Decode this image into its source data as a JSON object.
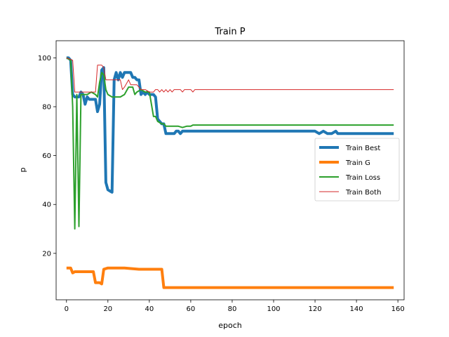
{
  "chart_data": {
    "type": "line",
    "title": "Train P",
    "xlabel": "epoch",
    "ylabel": "p",
    "xlim": [
      -5,
      163
    ],
    "ylim": [
      1,
      107
    ],
    "xticks": [
      0,
      20,
      40,
      60,
      80,
      100,
      120,
      140,
      160
    ],
    "yticks": [
      20,
      40,
      60,
      80,
      100
    ],
    "legend_position": "center-right",
    "grid": false,
    "series": [
      {
        "name": "Train Best",
        "color": "#1f77b4",
        "width": 4,
        "points": [
          [
            0,
            100
          ],
          [
            1,
            100
          ],
          [
            2,
            99
          ],
          [
            3,
            85
          ],
          [
            4,
            84
          ],
          [
            5,
            84
          ],
          [
            6,
            84
          ],
          [
            7,
            86
          ],
          [
            8,
            85
          ],
          [
            9,
            81
          ],
          [
            10,
            84
          ],
          [
            11,
            83
          ],
          [
            12,
            83
          ],
          [
            13,
            83
          ],
          [
            14,
            83
          ],
          [
            15,
            78
          ],
          [
            16,
            81
          ],
          [
            17,
            95
          ],
          [
            18,
            96
          ],
          [
            19,
            49
          ],
          [
            20,
            46
          ],
          [
            21,
            45.5
          ],
          [
            22,
            45
          ],
          [
            23,
            91
          ],
          [
            24,
            94
          ],
          [
            25,
            91
          ],
          [
            26,
            94
          ],
          [
            27,
            92
          ],
          [
            28,
            94
          ],
          [
            29,
            94
          ],
          [
            30,
            94
          ],
          [
            31,
            94
          ],
          [
            32,
            92
          ],
          [
            33,
            92
          ],
          [
            34,
            91
          ],
          [
            35,
            91
          ],
          [
            36,
            85
          ],
          [
            37,
            86
          ],
          [
            38,
            85
          ],
          [
            39,
            86
          ],
          [
            40,
            85
          ],
          [
            41,
            85
          ],
          [
            42,
            85
          ],
          [
            43,
            84
          ],
          [
            44,
            75
          ],
          [
            45,
            74
          ],
          [
            46,
            73
          ],
          [
            47,
            73
          ],
          [
            48,
            69
          ],
          [
            49,
            69
          ],
          [
            50,
            69
          ],
          [
            51,
            69
          ],
          [
            52,
            69
          ],
          [
            53,
            70
          ],
          [
            54,
            70
          ],
          [
            55,
            69
          ],
          [
            56,
            70
          ],
          [
            57,
            70
          ],
          [
            60,
            70
          ],
          [
            120,
            70
          ],
          [
            122,
            69
          ],
          [
            124,
            70
          ],
          [
            126,
            69
          ],
          [
            128,
            69
          ],
          [
            130,
            70
          ],
          [
            131,
            69
          ],
          [
            135,
            69
          ],
          [
            158,
            69
          ]
        ]
      },
      {
        "name": "Train G",
        "color": "#ff7f0e",
        "width": 4,
        "points": [
          [
            0,
            14
          ],
          [
            2,
            14
          ],
          [
            3,
            12
          ],
          [
            4,
            12.5
          ],
          [
            5,
            12.5
          ],
          [
            12,
            12.5
          ],
          [
            13,
            12.5
          ],
          [
            14,
            8
          ],
          [
            16,
            8
          ],
          [
            17,
            7.5
          ],
          [
            18,
            13.5
          ],
          [
            20,
            14
          ],
          [
            26,
            14
          ],
          [
            28,
            14
          ],
          [
            35,
            13.5
          ],
          [
            40,
            13.5
          ],
          [
            45,
            13.5
          ],
          [
            46,
            13.5
          ],
          [
            47,
            6
          ],
          [
            100,
            6
          ],
          [
            158,
            6
          ]
        ]
      },
      {
        "name": "Train Loss",
        "color": "#2ca02c",
        "width": 2,
        "points": [
          [
            0,
            100
          ],
          [
            2,
            99
          ],
          [
            3,
            80
          ],
          [
            4,
            30
          ],
          [
            5,
            85
          ],
          [
            6,
            31
          ],
          [
            7,
            85
          ],
          [
            10,
            85
          ],
          [
            12,
            86
          ],
          [
            14,
            85
          ],
          [
            15,
            84
          ],
          [
            16,
            90
          ],
          [
            17,
            94
          ],
          [
            18,
            93
          ],
          [
            19,
            87
          ],
          [
            20,
            85
          ],
          [
            22,
            84
          ],
          [
            24,
            84
          ],
          [
            26,
            84
          ],
          [
            28,
            85
          ],
          [
            30,
            88
          ],
          [
            32,
            88
          ],
          [
            33,
            85
          ],
          [
            34,
            86
          ],
          [
            36,
            87
          ],
          [
            38,
            86
          ],
          [
            40,
            86
          ],
          [
            42,
            76
          ],
          [
            43,
            76
          ],
          [
            44,
            74
          ],
          [
            46,
            73
          ],
          [
            47,
            73
          ],
          [
            48,
            72
          ],
          [
            50,
            72
          ],
          [
            52,
            72
          ],
          [
            54,
            72
          ],
          [
            56,
            71.5
          ],
          [
            58,
            72
          ],
          [
            60,
            72
          ],
          [
            61,
            72.5
          ],
          [
            80,
            72.5
          ],
          [
            158,
            72.5
          ]
        ]
      },
      {
        "name": "Train Both",
        "color": "#d62728",
        "width": 1,
        "points": [
          [
            0,
            100
          ],
          [
            3,
            99
          ],
          [
            4,
            86
          ],
          [
            6,
            86
          ],
          [
            10,
            86
          ],
          [
            12,
            86
          ],
          [
            14,
            86
          ],
          [
            15,
            97
          ],
          [
            16,
            97
          ],
          [
            17,
            97
          ],
          [
            18,
            96
          ],
          [
            19,
            91
          ],
          [
            20,
            91
          ],
          [
            24,
            91
          ],
          [
            26,
            91
          ],
          [
            27,
            87
          ],
          [
            28,
            88
          ],
          [
            30,
            91
          ],
          [
            31,
            89
          ],
          [
            34,
            89
          ],
          [
            36,
            87
          ],
          [
            38,
            87
          ],
          [
            40,
            86
          ],
          [
            42,
            86
          ],
          [
            43,
            87
          ],
          [
            44,
            87
          ],
          [
            45,
            86
          ],
          [
            46,
            87
          ],
          [
            47,
            86
          ],
          [
            48,
            87
          ],
          [
            49,
            86
          ],
          [
            50,
            87
          ],
          [
            51,
            86
          ],
          [
            52,
            87
          ],
          [
            53,
            87
          ],
          [
            54,
            87
          ],
          [
            55,
            87
          ],
          [
            56,
            86
          ],
          [
            57,
            87
          ],
          [
            58,
            87
          ],
          [
            59,
            87
          ],
          [
            60,
            87
          ],
          [
            61,
            86
          ],
          [
            62,
            87
          ],
          [
            80,
            87
          ],
          [
            158,
            87
          ]
        ]
      }
    ]
  }
}
